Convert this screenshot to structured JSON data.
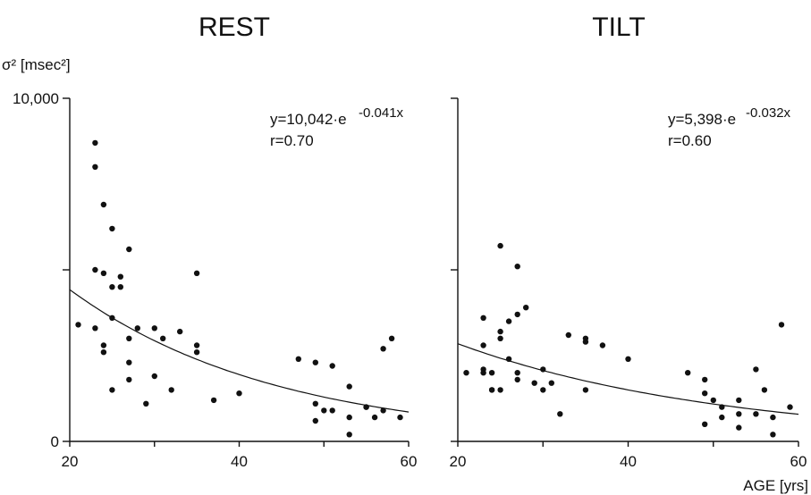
{
  "chart_data": [
    {
      "type": "scatter",
      "title": "REST",
      "ylabel": "σ² [msec²]",
      "xlabel": "",
      "xlim": [
        20,
        60
      ],
      "ylim": [
        0,
        10000
      ],
      "x_ticks": [
        "20",
        "40",
        "60"
      ],
      "y_ticks": [
        "0",
        "10,000"
      ],
      "equation": {
        "text": "y=10,042·e",
        "exponent": "-0.041x"
      },
      "r_text": "r=0.70",
      "fit": {
        "a": 10042,
        "b": -0.041
      },
      "points": [
        [
          21,
          3400
        ],
        [
          23,
          8700
        ],
        [
          23,
          8000
        ],
        [
          23,
          5000
        ],
        [
          23,
          3300
        ],
        [
          24,
          6900
        ],
        [
          24,
          4900
        ],
        [
          24,
          2800
        ],
        [
          24,
          2600
        ],
        [
          25,
          6200
        ],
        [
          25,
          4500
        ],
        [
          25,
          3600
        ],
        [
          25,
          1500
        ],
        [
          26,
          4800
        ],
        [
          26,
          4500
        ],
        [
          27,
          5600
        ],
        [
          27,
          3000
        ],
        [
          27,
          2300
        ],
        [
          27,
          1800
        ],
        [
          28,
          3300
        ],
        [
          29,
          1100
        ],
        [
          30,
          3300
        ],
        [
          30,
          1900
        ],
        [
          31,
          3000
        ],
        [
          32,
          1500
        ],
        [
          33,
          3200
        ],
        [
          35,
          4900
        ],
        [
          35,
          2800
        ],
        [
          35,
          2600
        ],
        [
          37,
          1200
        ],
        [
          40,
          1400
        ],
        [
          47,
          2400
        ],
        [
          49,
          2300
        ],
        [
          49,
          1100
        ],
        [
          49,
          600
        ],
        [
          50,
          900
        ],
        [
          51,
          2200
        ],
        [
          51,
          900
        ],
        [
          53,
          1600
        ],
        [
          53,
          700
        ],
        [
          53,
          200
        ],
        [
          55,
          1000
        ],
        [
          55,
          1000
        ],
        [
          56,
          700
        ],
        [
          57,
          2700
        ],
        [
          57,
          900
        ],
        [
          58,
          3000
        ],
        [
          59,
          700
        ]
      ]
    },
    {
      "type": "scatter",
      "title": "TILT",
      "ylabel": "",
      "xlabel": "AGE [yrs]",
      "xlim": [
        20,
        60
      ],
      "ylim": [
        0,
        10000
      ],
      "x_ticks": [
        "20",
        "40",
        "60"
      ],
      "y_ticks": [],
      "equation": {
        "text": "y=5,398·e",
        "exponent": "-0.032x"
      },
      "r_text": "r=0.60",
      "fit": {
        "a": 5398,
        "b": -0.032
      },
      "points": [
        [
          21,
          2000
        ],
        [
          23,
          3600
        ],
        [
          23,
          2800
        ],
        [
          23,
          2100
        ],
        [
          23,
          2000
        ],
        [
          24,
          2000
        ],
        [
          24,
          1500
        ],
        [
          24,
          1500
        ],
        [
          25,
          5700
        ],
        [
          25,
          3200
        ],
        [
          25,
          3000
        ],
        [
          25,
          1500
        ],
        [
          26,
          3500
        ],
        [
          26,
          2400
        ],
        [
          27,
          5100
        ],
        [
          27,
          3700
        ],
        [
          27,
          2000
        ],
        [
          27,
          1800
        ],
        [
          28,
          3900
        ],
        [
          29,
          1700
        ],
        [
          30,
          2100
        ],
        [
          30,
          1500
        ],
        [
          31,
          1700
        ],
        [
          32,
          800
        ],
        [
          33,
          3100
        ],
        [
          35,
          3000
        ],
        [
          35,
          2900
        ],
        [
          35,
          1500
        ],
        [
          37,
          2800
        ],
        [
          40,
          2400
        ],
        [
          47,
          2000
        ],
        [
          49,
          1800
        ],
        [
          49,
          1400
        ],
        [
          49,
          500
        ],
        [
          50,
          1200
        ],
        [
          51,
          1000
        ],
        [
          51,
          700
        ],
        [
          53,
          1200
        ],
        [
          53,
          800
        ],
        [
          53,
          400
        ],
        [
          55,
          2100
        ],
        [
          55,
          800
        ],
        [
          56,
          1500
        ],
        [
          57,
          700
        ],
        [
          57,
          200
        ],
        [
          58,
          3400
        ],
        [
          59,
          1000
        ]
      ]
    }
  ]
}
